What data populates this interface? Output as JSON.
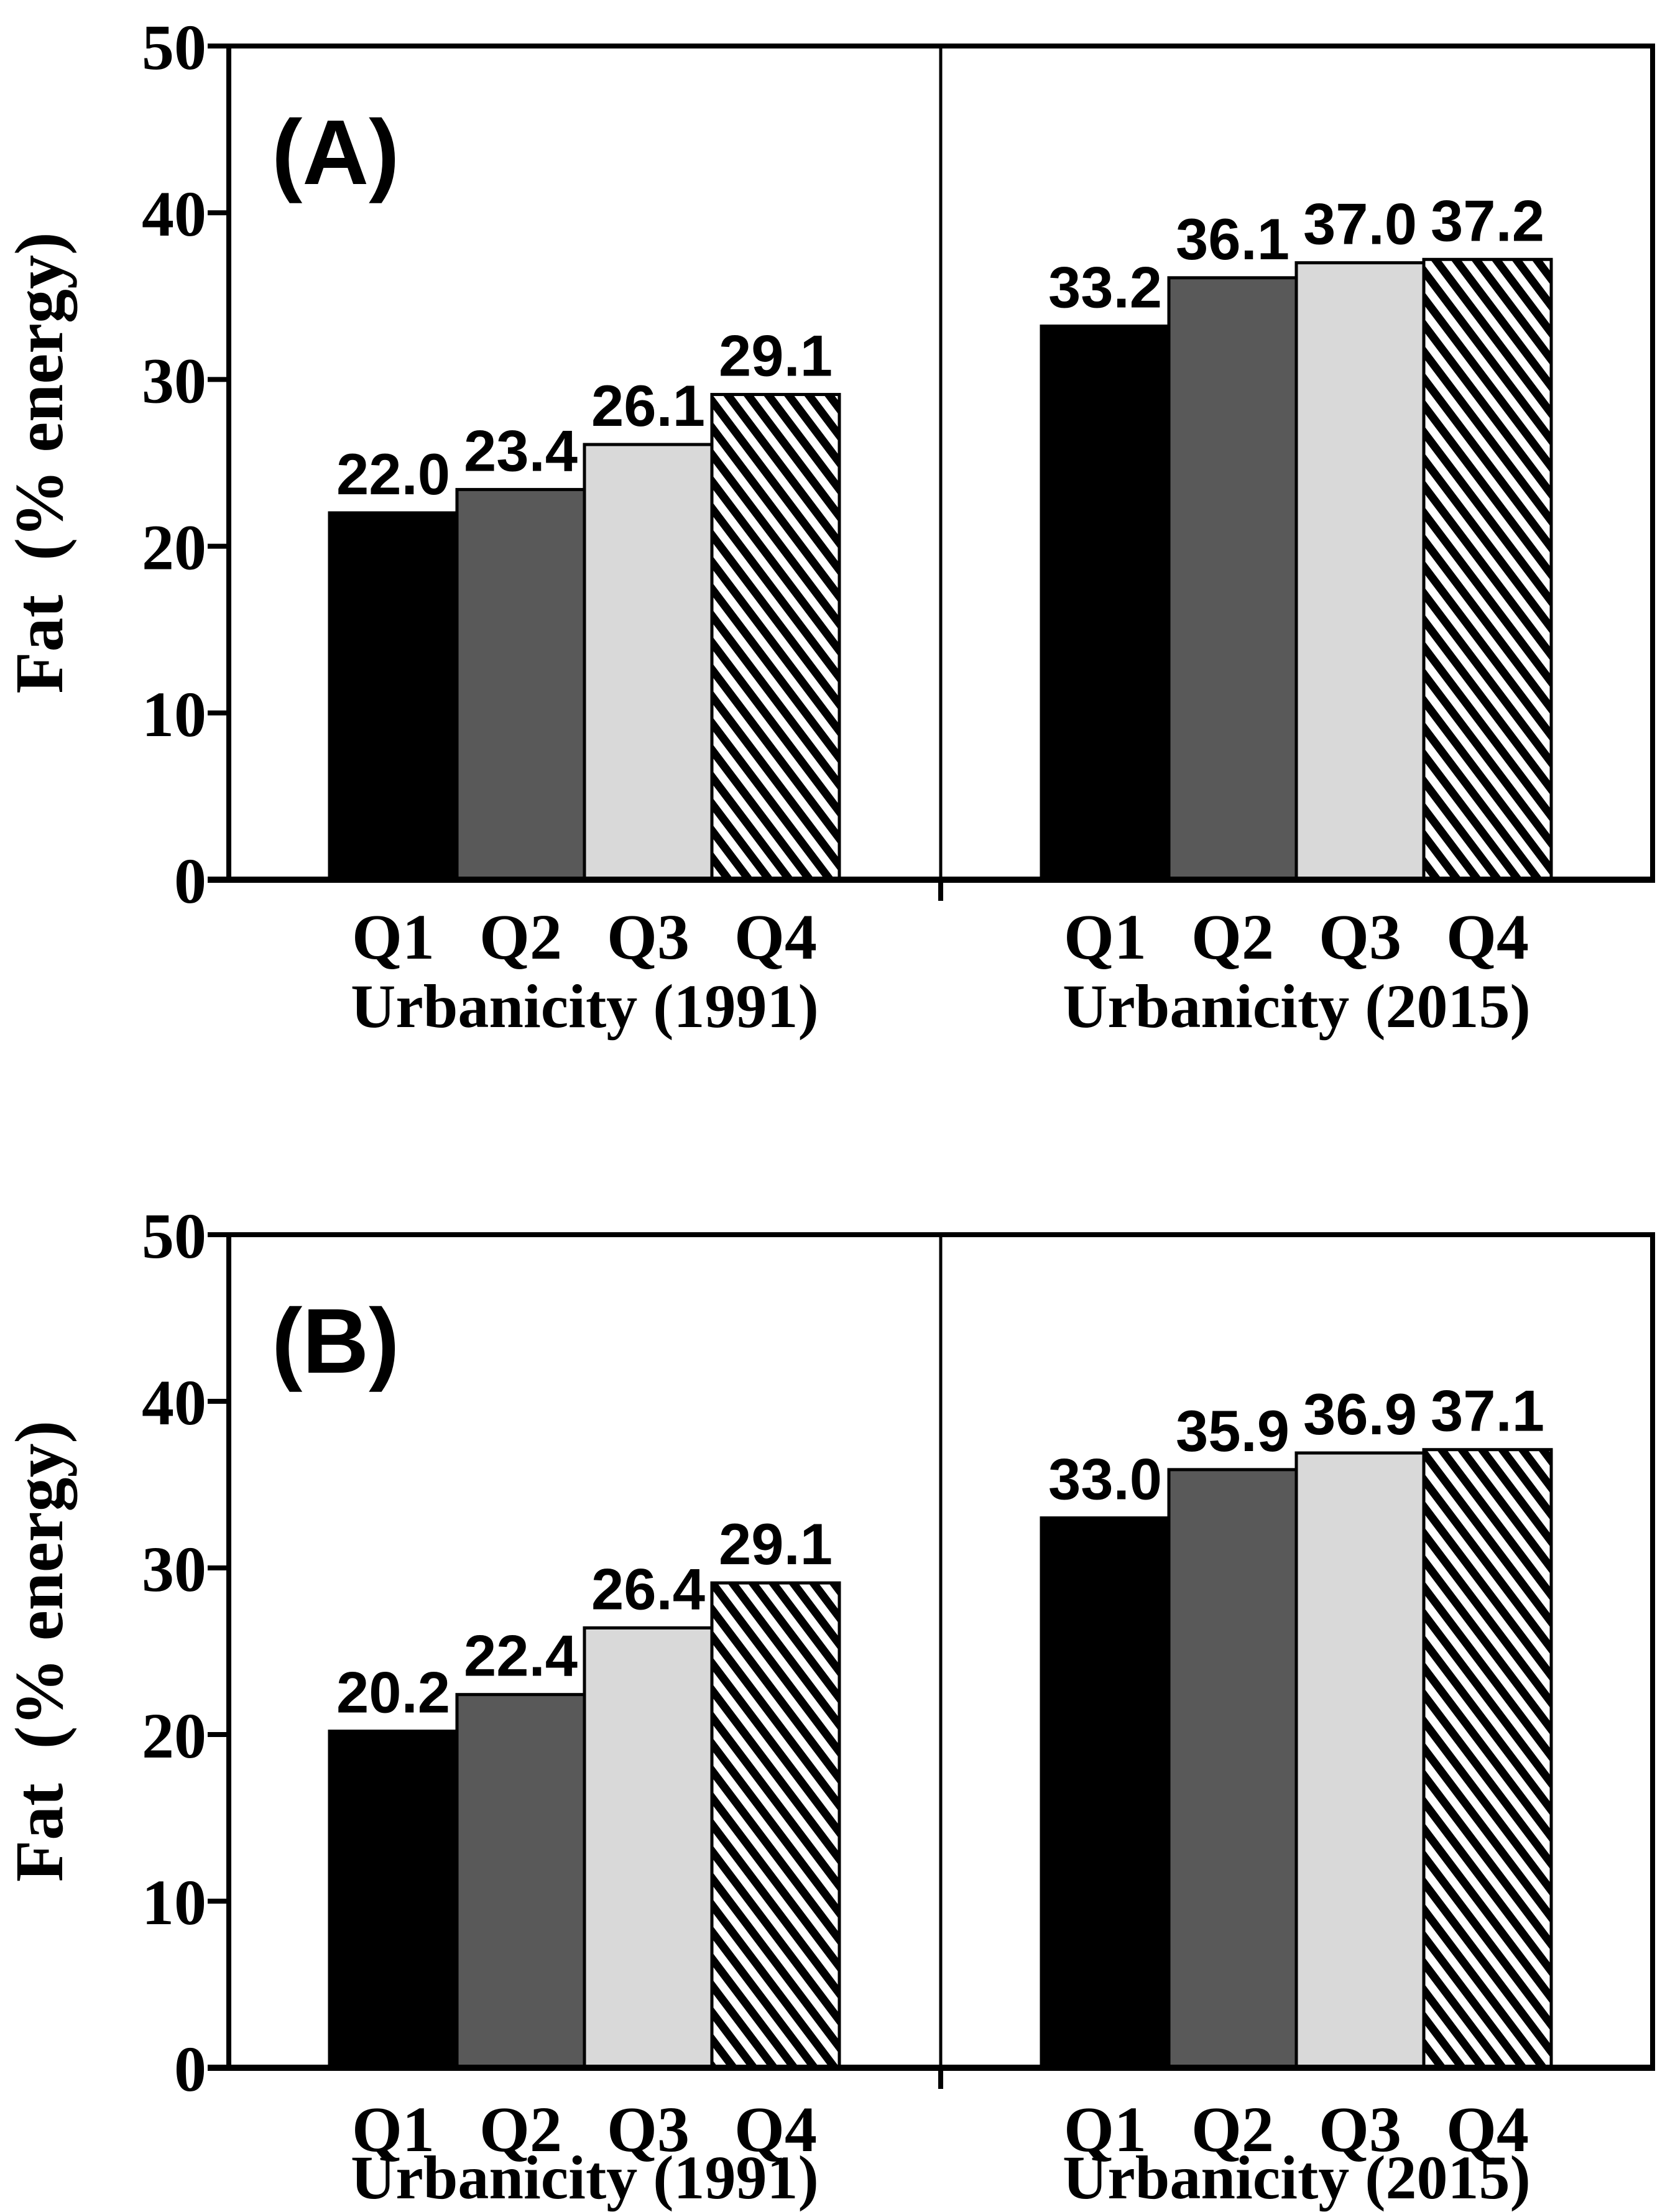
{
  "colors": {
    "background": "#ffffff",
    "axis": "#000000",
    "text": "#000000",
    "solid-black": "#000000",
    "solid-darkgray": "#595959",
    "solid-lightgray": "#d9d9d9",
    "hatch-foreground": "#000000",
    "hatch-background": "#ffffff"
  },
  "chart_data": [
    {
      "type": "bar",
      "panel_label": "(A)",
      "ylabel": "Fat  (% energy)",
      "ylim": [
        0,
        50
      ],
      "yticks": [
        0,
        10,
        20,
        30,
        40,
        50
      ],
      "grid": false,
      "legend": "none",
      "bar_styles": [
        "solid-black",
        "solid-darkgray",
        "solid-lightgray",
        "diagonal-hatch"
      ],
      "groups": [
        {
          "title": "Urbanicity (1991)",
          "categories": [
            "Q1",
            "Q2",
            "Q3",
            "Q4"
          ],
          "values": [
            22.0,
            23.4,
            26.1,
            29.1
          ],
          "value_labels": [
            "22.0",
            "23.4",
            "26.1",
            "29.1"
          ]
        },
        {
          "title": "Urbanicity (2015)",
          "categories": [
            "Q1",
            "Q2",
            "Q3",
            "Q4"
          ],
          "values": [
            33.2,
            36.1,
            37.0,
            37.2
          ],
          "value_labels": [
            "33.2",
            "36.1",
            "37.0",
            "37.2"
          ]
        }
      ]
    },
    {
      "type": "bar",
      "panel_label": "(B)",
      "ylabel": "Fat  (% energy)",
      "ylim": [
        0,
        50
      ],
      "yticks": [
        0,
        10,
        20,
        30,
        40,
        50
      ],
      "grid": false,
      "legend": "none",
      "bar_styles": [
        "solid-black",
        "solid-darkgray",
        "solid-lightgray",
        "diagonal-hatch"
      ],
      "groups": [
        {
          "title": "Urbanicity (1991)",
          "categories": [
            "Q1",
            "Q2",
            "Q3",
            "Q4"
          ],
          "values": [
            20.2,
            22.4,
            26.4,
            29.1
          ],
          "value_labels": [
            "20.2",
            "22.4",
            "26.4",
            "29.1"
          ]
        },
        {
          "title": "Urbanicity (2015)",
          "categories": [
            "Q1",
            "Q2",
            "Q3",
            "Q4"
          ],
          "values": [
            33.0,
            35.9,
            36.9,
            37.1
          ],
          "value_labels": [
            "33.0",
            "35.9",
            "36.9",
            "37.1"
          ]
        }
      ]
    }
  ]
}
